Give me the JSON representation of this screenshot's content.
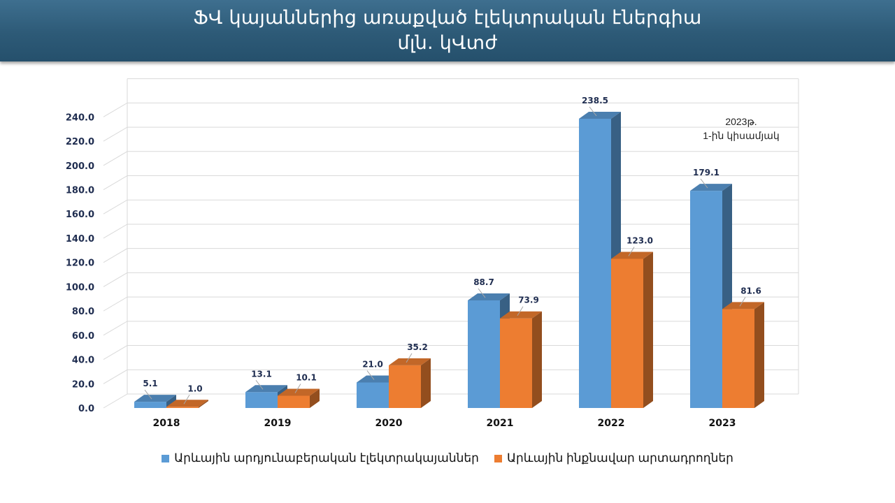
{
  "title": {
    "line1": "ՖՎ կայաններից առաքված էլեկտրական էներգիա",
    "line2": "մլն. կՎտժ"
  },
  "note": {
    "line1": "2023թ.",
    "line2": "1-ին կիսամյակ"
  },
  "colors": {
    "series1": "#5b9bd5",
    "series2": "#ed7d31",
    "title_band": "#2d5a77"
  },
  "chart_data": {
    "type": "bar",
    "categories": [
      "2018",
      "2019",
      "2020",
      "2021",
      "2022",
      "2023"
    ],
    "series": [
      {
        "name": "Արևային արդյունաբերական էլեկտրակայաններ",
        "values": [
          5.1,
          13.1,
          21.0,
          88.7,
          238.5,
          179.1
        ],
        "labels": [
          "5.1",
          "13.1",
          "21.0",
          "88.7",
          "238.5",
          "179.1"
        ]
      },
      {
        "name": "Արևային ինքնավար արտադրողներ",
        "values": [
          1.0,
          10.1,
          35.2,
          73.9,
          123.0,
          81.6
        ],
        "labels": [
          "1.0",
          "10.1",
          "35.2",
          "73.9",
          "123.0",
          "81.6"
        ]
      }
    ],
    "yticks": [
      "0.0",
      "20.0",
      "40.0",
      "60.0",
      "80.0",
      "100.0",
      "120.0",
      "140.0",
      "160.0",
      "180.0",
      "200.0",
      "220.0",
      "240.0"
    ],
    "ylim": [
      0,
      260
    ],
    "grid": true,
    "legend": "bottom",
    "style": "3d"
  }
}
